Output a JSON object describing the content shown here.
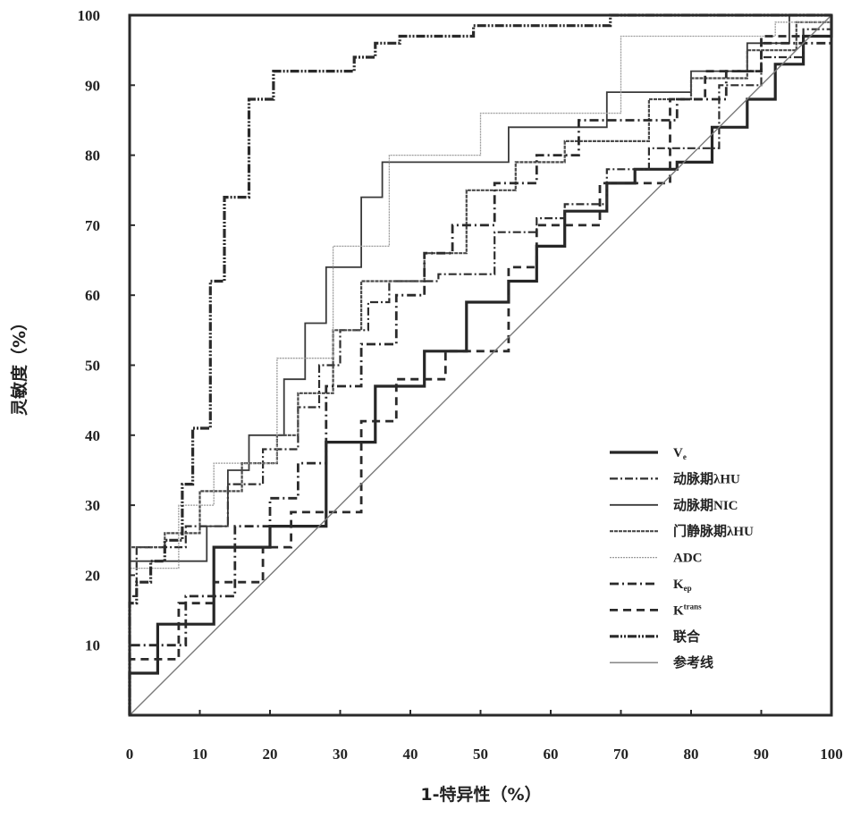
{
  "chart_data": {
    "type": "line",
    "title": "",
    "xlabel": "1-特异性（%）",
    "ylabel": "灵敏度（%）",
    "xlim": [
      0,
      100
    ],
    "ylim": [
      0,
      100
    ],
    "xticks": [
      "0",
      "10",
      "20",
      "30",
      "40",
      "50",
      "60",
      "70",
      "80",
      "90",
      "100"
    ],
    "yticks": [
      "10",
      "20",
      "30",
      "40",
      "50",
      "60",
      "70",
      "80",
      "90",
      "100"
    ],
    "legend_position": "bottom-right",
    "series": [
      {
        "name": "Ve",
        "label": "V",
        "sub": "e",
        "sup": "",
        "style": "solid-thick",
        "points": [
          [
            0,
            0
          ],
          [
            0,
            6
          ],
          [
            4,
            6
          ],
          [
            4,
            13
          ],
          [
            12,
            13
          ],
          [
            12,
            24
          ],
          [
            20,
            24
          ],
          [
            20,
            27
          ],
          [
            28,
            27
          ],
          [
            28,
            39
          ],
          [
            35,
            39
          ],
          [
            35,
            47
          ],
          [
            42,
            47
          ],
          [
            42,
            52
          ],
          [
            48,
            52
          ],
          [
            48,
            59
          ],
          [
            54,
            59
          ],
          [
            54,
            62
          ],
          [
            58,
            62
          ],
          [
            58,
            67
          ],
          [
            62,
            67
          ],
          [
            62,
            72
          ],
          [
            68,
            72
          ],
          [
            68,
            76
          ],
          [
            72,
            76
          ],
          [
            72,
            78
          ],
          [
            78,
            78
          ],
          [
            78,
            79
          ],
          [
            83,
            79
          ],
          [
            83,
            84
          ],
          [
            88,
            84
          ],
          [
            88,
            88
          ],
          [
            92,
            88
          ],
          [
            92,
            93
          ],
          [
            96,
            93
          ],
          [
            96,
            97
          ],
          [
            100,
            97
          ],
          [
            100,
            100
          ]
        ]
      },
      {
        "name": "动脉期λHU",
        "label": "动脉期λHU",
        "sub": "",
        "sup": "",
        "style": "dash-dot",
        "points": [
          [
            0,
            0
          ],
          [
            0,
            17
          ],
          [
            1,
            17
          ],
          [
            1,
            24
          ],
          [
            8,
            24
          ],
          [
            8,
            27
          ],
          [
            14,
            27
          ],
          [
            14,
            33
          ],
          [
            19,
            33
          ],
          [
            19,
            38
          ],
          [
            24,
            38
          ],
          [
            24,
            44
          ],
          [
            27,
            44
          ],
          [
            27,
            50
          ],
          [
            30,
            50
          ],
          [
            30,
            55
          ],
          [
            34,
            55
          ],
          [
            34,
            59
          ],
          [
            37,
            59
          ],
          [
            37,
            62
          ],
          [
            44,
            62
          ],
          [
            44,
            63
          ],
          [
            52,
            63
          ],
          [
            52,
            69
          ],
          [
            58,
            69
          ],
          [
            58,
            71
          ],
          [
            62,
            71
          ],
          [
            62,
            73
          ],
          [
            68,
            73
          ],
          [
            68,
            78
          ],
          [
            74,
            78
          ],
          [
            74,
            81
          ],
          [
            84,
            81
          ],
          [
            84,
            90
          ],
          [
            90,
            90
          ],
          [
            90,
            94
          ],
          [
            96,
            94
          ],
          [
            96,
            98
          ],
          [
            100,
            98
          ],
          [
            100,
            100
          ]
        ]
      },
      {
        "name": "动脉期NIC",
        "label": "动脉期NIC",
        "sub": "",
        "sup": "",
        "style": "solid",
        "points": [
          [
            0,
            0
          ],
          [
            0,
            22
          ],
          [
            11,
            22
          ],
          [
            11,
            27
          ],
          [
            14,
            27
          ],
          [
            14,
            35
          ],
          [
            17,
            35
          ],
          [
            17,
            40
          ],
          [
            22,
            40
          ],
          [
            22,
            48
          ],
          [
            25,
            48
          ],
          [
            25,
            56
          ],
          [
            28,
            56
          ],
          [
            28,
            64
          ],
          [
            33,
            64
          ],
          [
            33,
            74
          ],
          [
            36,
            74
          ],
          [
            36,
            79
          ],
          [
            54,
            79
          ],
          [
            54,
            84
          ],
          [
            68,
            84
          ],
          [
            68,
            89
          ],
          [
            80,
            89
          ],
          [
            80,
            92
          ],
          [
            88,
            92
          ],
          [
            88,
            96
          ],
          [
            94,
            96
          ],
          [
            94,
            100
          ],
          [
            100,
            100
          ]
        ]
      },
      {
        "name": "门静脉期λHU",
        "label": "门静脉期λHU",
        "sub": "",
        "sup": "",
        "style": "dense-dash",
        "points": [
          [
            0,
            0
          ],
          [
            0,
            24
          ],
          [
            5,
            24
          ],
          [
            5,
            26
          ],
          [
            10,
            26
          ],
          [
            10,
            32
          ],
          [
            16,
            32
          ],
          [
            16,
            36
          ],
          [
            21,
            36
          ],
          [
            21,
            40
          ],
          [
            24,
            40
          ],
          [
            24,
            46
          ],
          [
            29,
            46
          ],
          [
            29,
            55
          ],
          [
            33,
            55
          ],
          [
            33,
            62
          ],
          [
            42,
            62
          ],
          [
            42,
            66
          ],
          [
            48,
            66
          ],
          [
            48,
            75
          ],
          [
            55,
            75
          ],
          [
            55,
            79
          ],
          [
            62,
            79
          ],
          [
            62,
            82
          ],
          [
            74,
            82
          ],
          [
            74,
            88
          ],
          [
            80,
            88
          ],
          [
            80,
            91
          ],
          [
            88,
            91
          ],
          [
            88,
            95
          ],
          [
            95,
            95
          ],
          [
            95,
            99
          ],
          [
            100,
            99
          ],
          [
            100,
            100
          ]
        ]
      },
      {
        "name": "ADC",
        "label": "ADC",
        "sub": "",
        "sup": "",
        "style": "dotted-thin",
        "points": [
          [
            0,
            0
          ],
          [
            0,
            21
          ],
          [
            7,
            21
          ],
          [
            7,
            30
          ],
          [
            12,
            30
          ],
          [
            12,
            36
          ],
          [
            21,
            36
          ],
          [
            21,
            51
          ],
          [
            29,
            51
          ],
          [
            29,
            67
          ],
          [
            37,
            67
          ],
          [
            37,
            80
          ],
          [
            50,
            80
          ],
          [
            50,
            86
          ],
          [
            70,
            86
          ],
          [
            70,
            97
          ],
          [
            92,
            97
          ],
          [
            92,
            99
          ],
          [
            100,
            99
          ],
          [
            100,
            100
          ]
        ]
      },
      {
        "name": "Kep",
        "label": "K",
        "sub": "ep",
        "sup": "",
        "style": "long-dash-dot",
        "points": [
          [
            0,
            0
          ],
          [
            0,
            10
          ],
          [
            8,
            10
          ],
          [
            8,
            17
          ],
          [
            15,
            17
          ],
          [
            15,
            27
          ],
          [
            20,
            27
          ],
          [
            20,
            31
          ],
          [
            24,
            31
          ],
          [
            24,
            36
          ],
          [
            28,
            36
          ],
          [
            28,
            47
          ],
          [
            33,
            47
          ],
          [
            33,
            53
          ],
          [
            38,
            53
          ],
          [
            38,
            60
          ],
          [
            42,
            60
          ],
          [
            42,
            66
          ],
          [
            46,
            66
          ],
          [
            46,
            70
          ],
          [
            52,
            70
          ],
          [
            52,
            76
          ],
          [
            58,
            76
          ],
          [
            58,
            80
          ],
          [
            64,
            80
          ],
          [
            64,
            85
          ],
          [
            78,
            85
          ],
          [
            78,
            88
          ],
          [
            85,
            88
          ],
          [
            85,
            92
          ],
          [
            90,
            92
          ],
          [
            90,
            96
          ],
          [
            100,
            96
          ],
          [
            100,
            100
          ]
        ]
      },
      {
        "name": "Ktrans",
        "label": "K",
        "sub": "",
        "sup": "trans",
        "style": "dash",
        "points": [
          [
            0,
            0
          ],
          [
            0,
            8
          ],
          [
            7,
            8
          ],
          [
            7,
            16
          ],
          [
            12,
            16
          ],
          [
            12,
            19
          ],
          [
            19,
            19
          ],
          [
            19,
            24
          ],
          [
            23,
            24
          ],
          [
            23,
            29
          ],
          [
            33,
            29
          ],
          [
            33,
            42
          ],
          [
            38,
            42
          ],
          [
            38,
            48
          ],
          [
            45,
            48
          ],
          [
            45,
            52
          ],
          [
            54,
            52
          ],
          [
            54,
            64
          ],
          [
            58,
            64
          ],
          [
            58,
            70
          ],
          [
            67,
            70
          ],
          [
            67,
            76
          ],
          [
            77,
            76
          ],
          [
            77,
            88
          ],
          [
            82,
            88
          ],
          [
            82,
            92
          ],
          [
            90,
            92
          ],
          [
            90,
            97
          ],
          [
            100,
            97
          ],
          [
            100,
            100
          ]
        ]
      },
      {
        "name": "联合",
        "label": "联合",
        "sub": "",
        "sup": "",
        "style": "dash-dot-dot",
        "points": [
          [
            0,
            0
          ],
          [
            0,
            16
          ],
          [
            1,
            16
          ],
          [
            1,
            19
          ],
          [
            3,
            19
          ],
          [
            3,
            22
          ],
          [
            5,
            22
          ],
          [
            5,
            25
          ],
          [
            7.5,
            25
          ],
          [
            7.5,
            33
          ],
          [
            9,
            33
          ],
          [
            9,
            41
          ],
          [
            11.5,
            41
          ],
          [
            11.5,
            62
          ],
          [
            13.5,
            62
          ],
          [
            13.5,
            74
          ],
          [
            17,
            74
          ],
          [
            17,
            88
          ],
          [
            20.5,
            88
          ],
          [
            20.5,
            92
          ],
          [
            32,
            92
          ],
          [
            32,
            94
          ],
          [
            35,
            94
          ],
          [
            35,
            96
          ],
          [
            38.5,
            96
          ],
          [
            38.5,
            97
          ],
          [
            49,
            97
          ],
          [
            49,
            98.5
          ],
          [
            68.5,
            98.5
          ],
          [
            68.5,
            100
          ],
          [
            100,
            100
          ]
        ]
      },
      {
        "name": "参考线",
        "label": "参考线",
        "sub": "",
        "sup": "",
        "style": "reference",
        "points": [
          [
            0,
            0
          ],
          [
            100,
            100
          ]
        ]
      }
    ]
  }
}
